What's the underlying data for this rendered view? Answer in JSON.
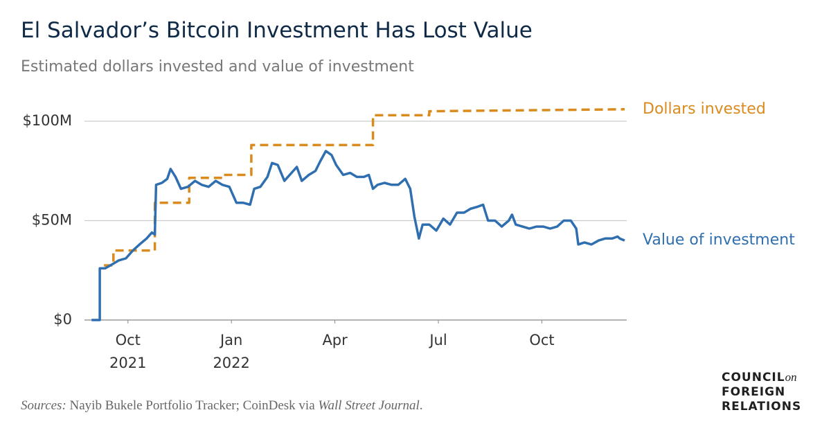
{
  "chart_data": {
    "type": "line",
    "title": "El Salvador’s Bitcoin Investment Has Lost Value",
    "subtitle": "Estimated dollars invested and value of investment",
    "source": [
      "Sources:",
      "Nayib Bukele Portfolio Tracker; CoinDesk via",
      "Wall Street Journal",
      "."
    ],
    "logo": [
      "COUNCIL",
      "on",
      "FOREIGN",
      "RELATIONS"
    ],
    "xlim": [
      2021.645,
      2022.955
    ],
    "xticks": [
      {
        "value": 2021.75,
        "label": "Oct\n2021"
      },
      {
        "value": 2022.0,
        "label": "Jan\n2022"
      },
      {
        "value": 2022.25,
        "label": "Apr"
      },
      {
        "value": 2022.5,
        "label": "Jul"
      },
      {
        "value": 2022.75,
        "label": "Oct"
      }
    ],
    "ylim": [
      0,
      110
    ],
    "yticks": [
      {
        "value": 0,
        "label": "$0"
      },
      {
        "value": 50,
        "label": "$50M"
      },
      {
        "value": 100,
        "label": "$100M"
      }
    ],
    "grid": true,
    "series": [
      {
        "name": "Dollars invested",
        "color": "#d98b1e",
        "dashed": true,
        "x": [
          2021.692,
          2021.715,
          2021.715,
          2021.815,
          2021.815,
          2021.898,
          2021.898,
          2021.975,
          2021.975,
          2022.048,
          2022.048,
          2022.342,
          2022.342,
          2022.478,
          2022.478,
          2022.95
        ],
        "values": [
          27.5,
          27.5,
          35,
          35,
          59,
          59,
          71.5,
          71.5,
          73,
          73,
          88,
          88,
          103,
          103,
          105,
          106
        ]
      },
      {
        "name": "Value of investment",
        "color": "#2f6fb0",
        "dashed": false,
        "x": [
          2021.662,
          2021.682,
          2021.682,
          2021.695,
          2021.712,
          2021.728,
          2021.745,
          2021.762,
          2021.778,
          2021.795,
          2021.808,
          2021.815,
          2021.818,
          2021.832,
          2021.845,
          2021.853,
          2021.865,
          2021.878,
          2021.895,
          2021.912,
          2021.928,
          2021.945,
          2021.962,
          2021.978,
          2021.995,
          2022.012,
          2022.028,
          2022.045,
          2022.055,
          2022.07,
          2022.087,
          2022.098,
          2022.112,
          2022.128,
          2022.145,
          2022.158,
          2022.17,
          2022.187,
          2022.203,
          2022.215,
          2022.228,
          2022.242,
          2022.253,
          2022.27,
          2022.287,
          2022.303,
          2022.32,
          2022.332,
          2022.342,
          2022.353,
          2022.37,
          2022.387,
          2022.403,
          2022.42,
          2022.432,
          2022.442,
          2022.453,
          2022.462,
          2022.478,
          2022.495,
          2022.512,
          2022.528,
          2022.545,
          2022.562,
          2022.578,
          2022.595,
          2022.608,
          2022.62,
          2022.637,
          2022.653,
          2022.67,
          2022.678,
          2022.687,
          2022.703,
          2022.72,
          2022.737,
          2022.753,
          2022.77,
          2022.787,
          2022.803,
          2022.82,
          2022.833,
          2022.838,
          2022.853,
          2022.87,
          2022.887,
          2022.903,
          2022.92,
          2022.933,
          2022.938,
          2022.95
        ],
        "values": [
          0,
          0,
          26,
          26,
          28,
          30,
          31,
          35,
          38,
          41,
          44,
          43,
          68,
          69,
          71,
          76,
          72,
          66,
          67,
          70,
          68,
          67,
          70,
          68,
          67,
          59,
          59,
          58,
          66,
          67,
          72,
          79,
          78,
          70,
          74,
          77,
          70,
          73,
          75,
          80,
          85,
          83,
          78,
          73,
          74,
          72,
          72,
          73,
          66,
          68,
          69,
          68,
          68,
          71,
          66,
          52,
          41,
          48,
          48,
          45,
          51,
          48,
          54,
          54,
          56,
          57,
          58,
          50,
          50,
          47,
          50,
          53,
          48,
          47,
          46,
          47,
          47,
          46,
          47,
          50,
          50,
          46,
          38,
          39,
          38,
          40,
          41,
          41,
          42,
          41,
          40
        ]
      }
    ]
  }
}
